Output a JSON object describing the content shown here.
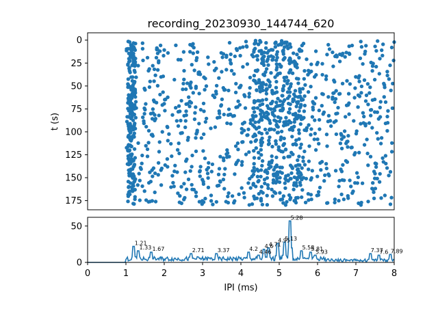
{
  "title": "recording_20230930_144744_620",
  "colors": {
    "series": "#1f77b4",
    "axis": "#000000",
    "background": "#ffffff"
  },
  "chart_data": [
    {
      "type": "scatter",
      "title": "recording_20230930_144744_620",
      "ylabel": "t (s)",
      "xlabel": "",
      "xlim": [
        0,
        8
      ],
      "ylim": [
        185,
        -8
      ],
      "y_inverted": true,
      "yticks": [
        0,
        25,
        50,
        75,
        100,
        125,
        150,
        175
      ],
      "grid": false,
      "x_range_of_points": [
        1.0,
        8.0
      ],
      "y_range_of_points": [
        0,
        180
      ],
      "points_note_count": 1400
    },
    {
      "type": "line",
      "xlabel": "IPI (ms)",
      "ylabel": "",
      "xlim": [
        0,
        8
      ],
      "ylim": [
        0,
        62
      ],
      "xticks": [
        0,
        1,
        2,
        3,
        4,
        5,
        6,
        7,
        8
      ],
      "yticks": [
        0,
        50
      ],
      "grid": false,
      "peaks": [
        {
          "x": 1.21,
          "y": 22,
          "label": "1.21"
        },
        {
          "x": 1.33,
          "y": 16,
          "label": "1.33"
        },
        {
          "x": 1.67,
          "y": 14,
          "label": "1.67"
        },
        {
          "x": 2.71,
          "y": 12,
          "label": "2.71"
        },
        {
          "x": 3.37,
          "y": 12,
          "label": "3.37"
        },
        {
          "x": 4.2,
          "y": 14,
          "label": "4.2"
        },
        {
          "x": 4.46,
          "y": 10,
          "label": "4.46"
        },
        {
          "x": 4.6,
          "y": 18,
          "label": "4.6"
        },
        {
          "x": 4.71,
          "y": 20,
          "label": "4.71"
        },
        {
          "x": 4.95,
          "y": 26,
          "label": "4.95"
        },
        {
          "x": 5.13,
          "y": 28,
          "label": "5.13"
        },
        {
          "x": 5.28,
          "y": 57,
          "label": "5.28"
        },
        {
          "x": 5.58,
          "y": 16,
          "label": "5.58"
        },
        {
          "x": 5.81,
          "y": 14,
          "label": "5.81"
        },
        {
          "x": 5.93,
          "y": 10,
          "label": "5.93"
        },
        {
          "x": 7.37,
          "y": 12,
          "label": "7.37"
        },
        {
          "x": 7.6,
          "y": 10,
          "label": "7.6"
        },
        {
          "x": 7.89,
          "y": 11,
          "label": "7.89"
        }
      ]
    }
  ]
}
